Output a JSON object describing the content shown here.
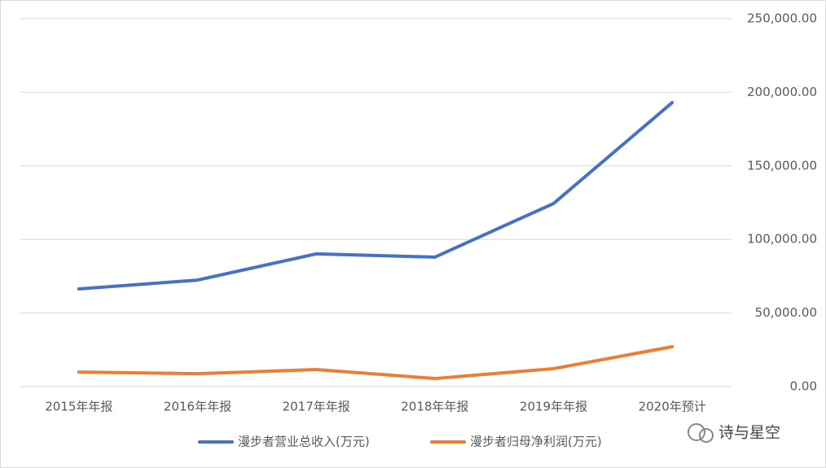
{
  "chart_data": {
    "type": "line",
    "categories": [
      "2015年年报",
      "2016年年报",
      "2017年年报",
      "2018年年报",
      "2019年年报",
      "2020年预计"
    ],
    "series": [
      {
        "name": "漫步者营业总收入(万元)",
        "color": "#4472c4",
        "values": [
          66400,
          72400,
          90200,
          88000,
          124400,
          193000
        ]
      },
      {
        "name": "漫步者归母净利润(万元)",
        "color": "#ed7d31",
        "values": [
          9900,
          8800,
          11600,
          5500,
          12200,
          27100
        ]
      }
    ],
    "ylim": [
      0,
      250000
    ],
    "yticks": [
      {
        "value": 0,
        "label": "0.00"
      },
      {
        "value": 50000,
        "label": "50,000.00"
      },
      {
        "value": 100000,
        "label": "100,000.00"
      },
      {
        "value": 150000,
        "label": "150,000.00"
      },
      {
        "value": 200000,
        "label": "200,000.00"
      },
      {
        "value": 250000,
        "label": "250,000.00"
      }
    ],
    "y_axis_side": "right",
    "grid": true,
    "legend": "bottom"
  },
  "watermark": "诗与星空"
}
